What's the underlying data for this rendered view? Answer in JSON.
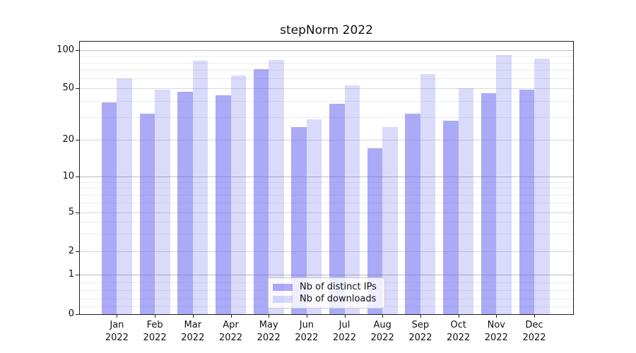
{
  "chart_data": {
    "type": "bar",
    "title": "stepNorm 2022",
    "x_year": "2022",
    "categories": [
      "Jan",
      "Feb",
      "Mar",
      "Apr",
      "May",
      "Jun",
      "Jul",
      "Aug",
      "Sep",
      "Oct",
      "Nov",
      "Dec"
    ],
    "series": [
      {
        "name": "Nb of distinct IPs",
        "color": "#6565f0",
        "alpha": 0.55,
        "values": [
          39,
          32,
          47,
          44,
          71,
          25,
          38,
          17,
          32,
          28,
          46,
          49
        ]
      },
      {
        "name": "Nb of downloads",
        "color": "#6565f0",
        "alpha": 0.24,
        "values": [
          60,
          49,
          83,
          63,
          84,
          29,
          53,
          25,
          65,
          50,
          91,
          86
        ]
      }
    ],
    "yaxis": {
      "scale": "asinh",
      "major_ticks": [
        0,
        1,
        2,
        5,
        10,
        20,
        50,
        100
      ],
      "power_ticks": [
        1,
        10,
        100
      ],
      "minor_ticks": [
        0.2,
        0.4,
        0.6,
        0.8,
        3,
        4,
        6,
        7,
        8,
        9,
        30,
        40,
        60,
        70,
        80,
        90
      ],
      "ylim": [
        0,
        115
      ]
    },
    "grid": "both",
    "legend_position": "lower center"
  }
}
